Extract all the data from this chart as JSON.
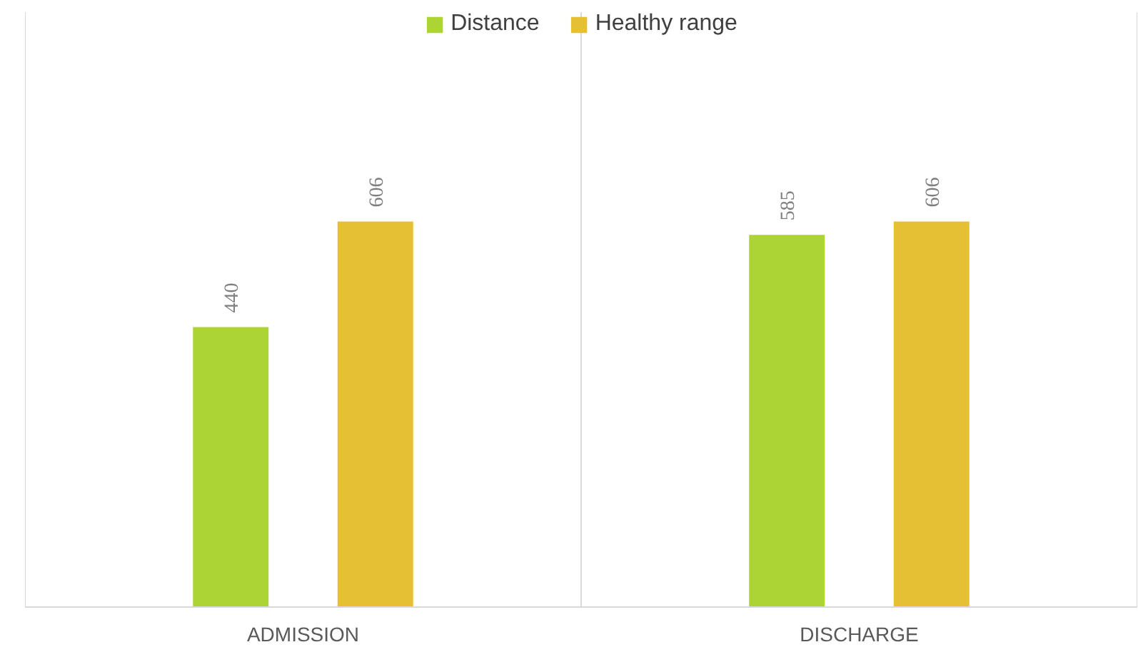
{
  "chart_data": {
    "type": "bar",
    "categories": [
      "ADMISSION",
      "DISCHARGE"
    ],
    "series": [
      {
        "name": "Distance",
        "color": "#acd434",
        "values": [
          440,
          585
        ]
      },
      {
        "name": "Healthy range",
        "color": "#e5c034",
        "values": [
          606,
          606
        ]
      }
    ],
    "ylim": [
      0,
      935
    ],
    "data_labels": true,
    "grid": "x",
    "legend": "top"
  }
}
